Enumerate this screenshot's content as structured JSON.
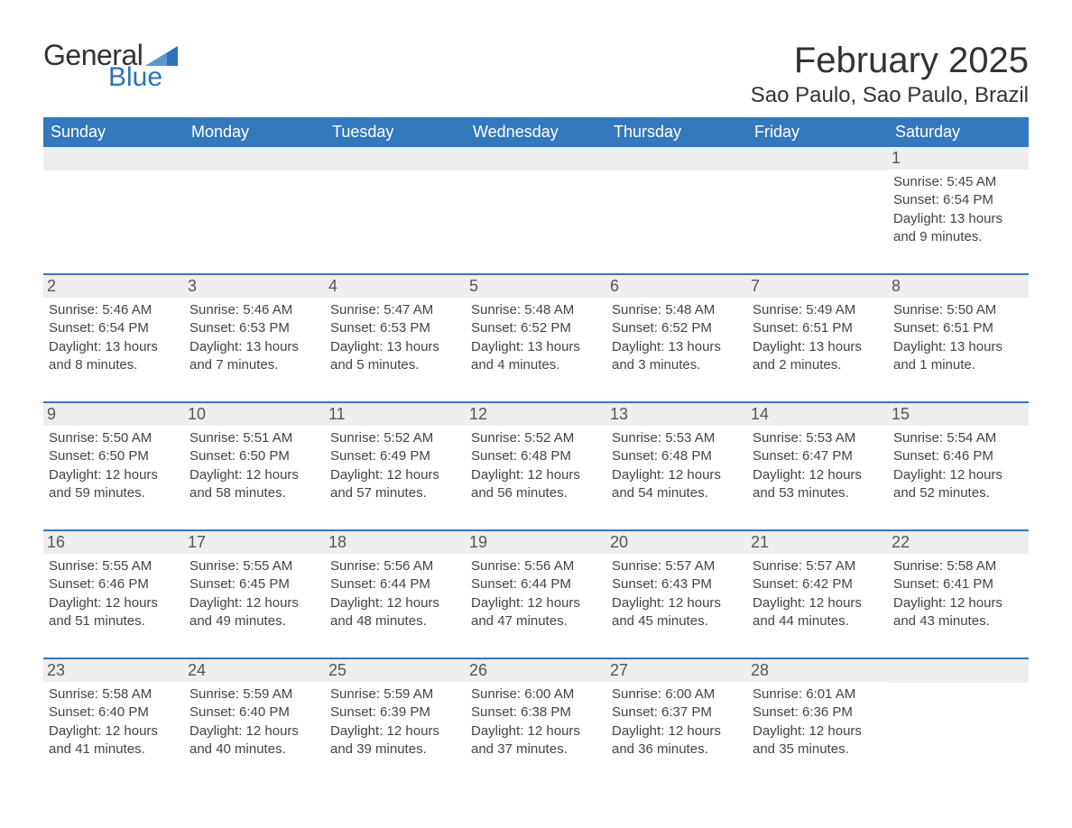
{
  "logo": {
    "text1": "General",
    "text2": "Blue",
    "accent_color": "#2c72b8"
  },
  "title": "February 2025",
  "location": "Sao Paulo, Sao Paulo, Brazil",
  "colors": {
    "header_bg": "#3478bd",
    "header_text": "#ffffff",
    "daynum_bg": "#eeeeee",
    "text": "#333333",
    "detail_text": "#444444",
    "week_border": "#3478bd"
  },
  "typography": {
    "title_fontsize": 40,
    "location_fontsize": 24,
    "dow_fontsize": 18,
    "daynum_fontsize": 18,
    "detail_fontsize": 15
  },
  "days_of_week": [
    "Sunday",
    "Monday",
    "Tuesday",
    "Wednesday",
    "Thursday",
    "Friday",
    "Saturday"
  ],
  "labels": {
    "sunrise": "Sunrise:",
    "sunset": "Sunset:",
    "daylight": "Daylight:"
  },
  "weeks": [
    [
      {
        "blank": true
      },
      {
        "blank": true
      },
      {
        "blank": true
      },
      {
        "blank": true
      },
      {
        "blank": true
      },
      {
        "blank": true
      },
      {
        "day": "1",
        "sunrise": "5:45 AM",
        "sunset": "6:54 PM",
        "daylight": "13 hours and 9 minutes."
      }
    ],
    [
      {
        "day": "2",
        "sunrise": "5:46 AM",
        "sunset": "6:54 PM",
        "daylight": "13 hours and 8 minutes."
      },
      {
        "day": "3",
        "sunrise": "5:46 AM",
        "sunset": "6:53 PM",
        "daylight": "13 hours and 7 minutes."
      },
      {
        "day": "4",
        "sunrise": "5:47 AM",
        "sunset": "6:53 PM",
        "daylight": "13 hours and 5 minutes."
      },
      {
        "day": "5",
        "sunrise": "5:48 AM",
        "sunset": "6:52 PM",
        "daylight": "13 hours and 4 minutes."
      },
      {
        "day": "6",
        "sunrise": "5:48 AM",
        "sunset": "6:52 PM",
        "daylight": "13 hours and 3 minutes."
      },
      {
        "day": "7",
        "sunrise": "5:49 AM",
        "sunset": "6:51 PM",
        "daylight": "13 hours and 2 minutes."
      },
      {
        "day": "8",
        "sunrise": "5:50 AM",
        "sunset": "6:51 PM",
        "daylight": "13 hours and 1 minute."
      }
    ],
    [
      {
        "day": "9",
        "sunrise": "5:50 AM",
        "sunset": "6:50 PM",
        "daylight": "12 hours and 59 minutes."
      },
      {
        "day": "10",
        "sunrise": "5:51 AM",
        "sunset": "6:50 PM",
        "daylight": "12 hours and 58 minutes."
      },
      {
        "day": "11",
        "sunrise": "5:52 AM",
        "sunset": "6:49 PM",
        "daylight": "12 hours and 57 minutes."
      },
      {
        "day": "12",
        "sunrise": "5:52 AM",
        "sunset": "6:48 PM",
        "daylight": "12 hours and 56 minutes."
      },
      {
        "day": "13",
        "sunrise": "5:53 AM",
        "sunset": "6:48 PM",
        "daylight": "12 hours and 54 minutes."
      },
      {
        "day": "14",
        "sunrise": "5:53 AM",
        "sunset": "6:47 PM",
        "daylight": "12 hours and 53 minutes."
      },
      {
        "day": "15",
        "sunrise": "5:54 AM",
        "sunset": "6:46 PM",
        "daylight": "12 hours and 52 minutes."
      }
    ],
    [
      {
        "day": "16",
        "sunrise": "5:55 AM",
        "sunset": "6:46 PM",
        "daylight": "12 hours and 51 minutes."
      },
      {
        "day": "17",
        "sunrise": "5:55 AM",
        "sunset": "6:45 PM",
        "daylight": "12 hours and 49 minutes."
      },
      {
        "day": "18",
        "sunrise": "5:56 AM",
        "sunset": "6:44 PM",
        "daylight": "12 hours and 48 minutes."
      },
      {
        "day": "19",
        "sunrise": "5:56 AM",
        "sunset": "6:44 PM",
        "daylight": "12 hours and 47 minutes."
      },
      {
        "day": "20",
        "sunrise": "5:57 AM",
        "sunset": "6:43 PM",
        "daylight": "12 hours and 45 minutes."
      },
      {
        "day": "21",
        "sunrise": "5:57 AM",
        "sunset": "6:42 PM",
        "daylight": "12 hours and 44 minutes."
      },
      {
        "day": "22",
        "sunrise": "5:58 AM",
        "sunset": "6:41 PM",
        "daylight": "12 hours and 43 minutes."
      }
    ],
    [
      {
        "day": "23",
        "sunrise": "5:58 AM",
        "sunset": "6:40 PM",
        "daylight": "12 hours and 41 minutes."
      },
      {
        "day": "24",
        "sunrise": "5:59 AM",
        "sunset": "6:40 PM",
        "daylight": "12 hours and 40 minutes."
      },
      {
        "day": "25",
        "sunrise": "5:59 AM",
        "sunset": "6:39 PM",
        "daylight": "12 hours and 39 minutes."
      },
      {
        "day": "26",
        "sunrise": "6:00 AM",
        "sunset": "6:38 PM",
        "daylight": "12 hours and 37 minutes."
      },
      {
        "day": "27",
        "sunrise": "6:00 AM",
        "sunset": "6:37 PM",
        "daylight": "12 hours and 36 minutes."
      },
      {
        "day": "28",
        "sunrise": "6:01 AM",
        "sunset": "6:36 PM",
        "daylight": "12 hours and 35 minutes."
      },
      {
        "blank": true
      }
    ]
  ]
}
